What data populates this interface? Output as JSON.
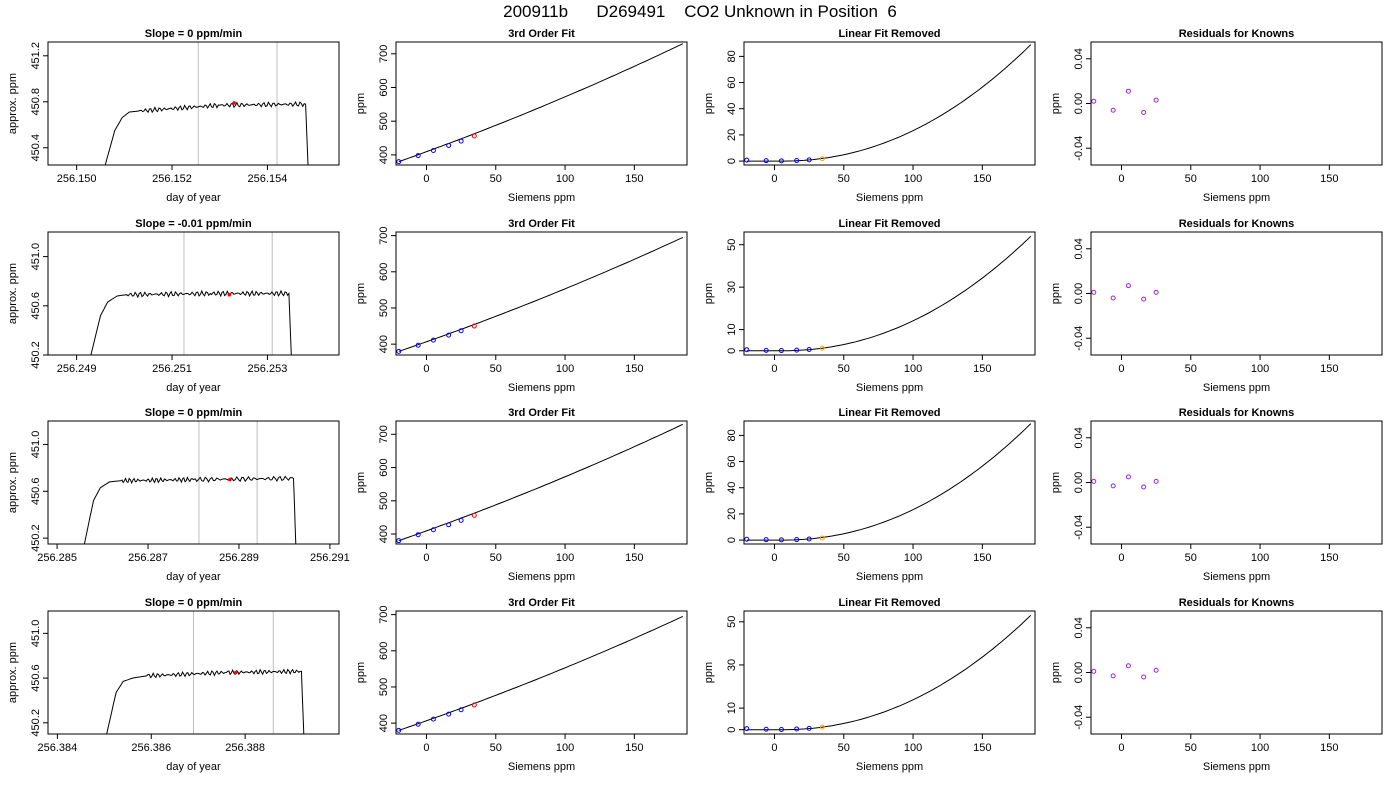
{
  "figure": {
    "title": "200911b      D269491    CO2 Unknown in Position  6"
  },
  "colors": {
    "axis": "#000000",
    "curve": "#000000",
    "marker_blue": "#0000ff",
    "marker_red": "#ff0000",
    "marker_orange": "#ffa500",
    "marker_purple": "#a020f0",
    "vline": "#bebebe",
    "background": "#ffffff"
  },
  "chart_data": [
    {
      "type": "line",
      "panel": "timeseries",
      "title": "Slope =  0  ppm/min",
      "xlabel": "day of year",
      "ylabel": "approx. ppm",
      "xlim": [
        256.1494,
        256.1555
      ],
      "ylim": [
        450.25,
        451.32
      ],
      "xticks": [
        "256.150",
        "256.152",
        "256.154"
      ],
      "yticks": [
        "450.4",
        "450.8",
        "451.2"
      ],
      "xtick_values": [
        256.15,
        256.152,
        256.154
      ],
      "ytick_values": [
        450.4,
        450.8,
        451.2
      ],
      "vlines": [
        256.15255,
        256.1542
      ],
      "marker": {
        "x": 256.1533,
        "y": 450.79
      },
      "series": [
        {
          "values": [
            [
              256.1506,
              450.25
            ],
            [
              256.1508,
              450.55
            ],
            [
              256.15095,
              450.66
            ],
            [
              256.1511,
              450.71
            ],
            [
              256.1513,
              450.72
            ],
            [
              256.153,
              450.77
            ],
            [
              256.1548,
              450.78
            ],
            [
              256.15485,
              450.25
            ]
          ]
        }
      ]
    },
    {
      "type": "line",
      "panel": "cubic_fit",
      "title": "3rd Order Fit",
      "xlabel": "Siemens ppm",
      "ylabel": "ppm",
      "xlim": [
        -22,
        188
      ],
      "ylim": [
        370,
        735
      ],
      "xticks": [
        "0",
        "50",
        "100",
        "150"
      ],
      "yticks": [
        "400",
        "500",
        "600",
        "700"
      ],
      "xtick_values": [
        0,
        50,
        100,
        150
      ],
      "ytick_values": [
        400,
        500,
        600,
        700
      ],
      "curve_x": [
        -20,
        185
      ],
      "curve_y": [
        380,
        730
      ],
      "points_blue": [
        [
          -20,
          380
        ],
        [
          -6,
          398
        ],
        [
          5,
          413
        ],
        [
          16,
          428
        ],
        [
          25,
          441
        ]
      ],
      "points_red": [
        [
          34.5,
          456
        ]
      ]
    },
    {
      "type": "line",
      "panel": "linear_removed",
      "title": "Linear Fit Removed",
      "xlabel": "Siemens ppm",
      "ylabel": "ppm",
      "xlim": [
        -22,
        188
      ],
      "ylim": [
        -3,
        91
      ],
      "xticks": [
        "0",
        "50",
        "100",
        "150"
      ],
      "yticks": [
        "0",
        "20",
        "40",
        "60",
        "80"
      ],
      "xtick_values": [
        0,
        50,
        100,
        150
      ],
      "ytick_values": [
        0,
        20,
        40,
        60,
        80
      ],
      "curve_x": [
        -20,
        185
      ],
      "curve_y": [
        0,
        89
      ],
      "points_blue": [
        [
          -20,
          0.7
        ],
        [
          -6,
          0.3
        ],
        [
          5,
          0.2
        ],
        [
          16,
          0.4
        ],
        [
          25,
          0.9
        ]
      ],
      "points_orange": [
        [
          34.5,
          1.8
        ]
      ]
    },
    {
      "type": "scatter",
      "panel": "residuals",
      "title": "Residuals for Knowns",
      "xlabel": "Siemens ppm",
      "ylabel": "ppm",
      "xlim": [
        -22,
        188
      ],
      "ylim": [
        -0.055,
        0.055
      ],
      "xticks": [
        "0",
        "50",
        "100",
        "150"
      ],
      "yticks": [
        "-0.04",
        "0.00",
        "0.04"
      ],
      "xtick_values": [
        0,
        50,
        100,
        150
      ],
      "ytick_values": [
        -0.04,
        0,
        0.04
      ],
      "points": [
        [
          -20,
          0.002
        ],
        [
          -6,
          -0.006
        ],
        [
          5,
          0.011
        ],
        [
          16,
          -0.008
        ],
        [
          25,
          0.003
        ]
      ]
    },
    {
      "type": "line",
      "panel": "timeseries",
      "title": "Slope =  -0.01  ppm/min",
      "xlabel": "day of year",
      "ylabel": "approx. ppm",
      "xlim": [
        256.2484,
        256.2545
      ],
      "ylim": [
        450.2,
        451.2
      ],
      "xticks": [
        "256.249",
        "256.251",
        "256.253"
      ],
      "yticks": [
        "450.2",
        "450.6",
        "451.0"
      ],
      "xtick_values": [
        256.249,
        256.251,
        256.253
      ],
      "ytick_values": [
        450.2,
        450.6,
        451.0
      ],
      "vlines": [
        256.25125,
        256.2531
      ],
      "marker": {
        "x": 256.2522,
        "y": 450.69
      },
      "series": [
        {
          "values": [
            [
              256.2493,
              450.2
            ],
            [
              256.2495,
              450.52
            ],
            [
              256.24965,
              450.63
            ],
            [
              256.24985,
              450.68
            ],
            [
              256.25005,
              450.69
            ],
            [
              256.2518,
              450.7
            ],
            [
              256.25345,
              450.7
            ],
            [
              256.2535,
              450.2
            ]
          ]
        }
      ]
    },
    {
      "type": "line",
      "panel": "cubic_fit",
      "title": "3rd Order Fit",
      "xlabel": "Siemens ppm",
      "ylabel": "ppm",
      "xlim": [
        -22,
        188
      ],
      "ylim": [
        370,
        710
      ],
      "xticks": [
        "0",
        "50",
        "100",
        "150"
      ],
      "yticks": [
        "400",
        "500",
        "600",
        "700"
      ],
      "xtick_values": [
        0,
        50,
        100,
        150
      ],
      "ytick_values": [
        400,
        500,
        600,
        700
      ],
      "curve_x": [
        -20,
        185
      ],
      "curve_y": [
        380,
        695
      ],
      "points_blue": [
        [
          -20,
          380
        ],
        [
          -6,
          397
        ],
        [
          5,
          411
        ],
        [
          16,
          425
        ],
        [
          25,
          437
        ]
      ],
      "points_red": [
        [
          34.5,
          450
        ]
      ]
    },
    {
      "type": "line",
      "panel": "linear_removed",
      "title": "Linear Fit Removed",
      "xlabel": "Siemens ppm",
      "ylabel": "ppm",
      "xlim": [
        -22,
        188
      ],
      "ylim": [
        -2,
        56
      ],
      "xticks": [
        "0",
        "50",
        "100",
        "150"
      ],
      "yticks": [
        "0",
        "10",
        "30",
        "50"
      ],
      "xtick_values": [
        0,
        50,
        100,
        150
      ],
      "ytick_values": [
        0,
        10,
        30,
        50
      ],
      "curve_x": [
        -20,
        185
      ],
      "curve_y": [
        0,
        54
      ],
      "points_blue": [
        [
          -20,
          0.5
        ],
        [
          -6,
          0.2
        ],
        [
          5,
          0.1
        ],
        [
          16,
          0.3
        ],
        [
          25,
          0.6
        ]
      ],
      "points_orange": [
        [
          34.5,
          1.2
        ]
      ]
    },
    {
      "type": "scatter",
      "panel": "residuals",
      "title": "Residuals for Knowns",
      "xlabel": "Siemens ppm",
      "ylabel": "ppm",
      "xlim": [
        -22,
        188
      ],
      "ylim": [
        -0.055,
        0.055
      ],
      "xticks": [
        "0",
        "50",
        "100",
        "150"
      ],
      "yticks": [
        "-0.04",
        "0.00",
        "0.04"
      ],
      "xtick_values": [
        0,
        50,
        100,
        150
      ],
      "ytick_values": [
        -0.04,
        0,
        0.04
      ],
      "points": [
        [
          -20,
          0.001
        ],
        [
          -6,
          -0.004
        ],
        [
          5,
          0.007
        ],
        [
          16,
          -0.005
        ],
        [
          25,
          0.001
        ]
      ]
    },
    {
      "type": "line",
      "panel": "timeseries",
      "title": "Slope =  0  ppm/min",
      "xlabel": "day of year",
      "ylabel": "approx. ppm",
      "xlim": [
        256.2848,
        256.2912
      ],
      "ylim": [
        450.15,
        451.2
      ],
      "xticks": [
        "256.285",
        "256.287",
        "256.289",
        "256.291"
      ],
      "yticks": [
        "450.2",
        "450.6",
        "451.0"
      ],
      "xtick_values": [
        256.285,
        256.287,
        256.289,
        256.291
      ],
      "ytick_values": [
        450.2,
        450.6,
        451.0
      ],
      "vlines": [
        256.28812,
        256.2894
      ],
      "marker": {
        "x": 256.2888,
        "y": 450.7
      },
      "series": [
        {
          "values": [
            [
              256.2856,
              450.15
            ],
            [
              256.2858,
              450.52
            ],
            [
              256.28595,
              450.63
            ],
            [
              256.28615,
              450.68
            ],
            [
              256.2864,
              450.69
            ],
            [
              256.288,
              450.7
            ],
            [
              256.2902,
              450.71
            ],
            [
              256.29025,
              450.15
            ]
          ]
        }
      ]
    },
    {
      "type": "line",
      "panel": "cubic_fit",
      "title": "3rd Order Fit",
      "xlabel": "Siemens ppm",
      "ylabel": "ppm",
      "xlim": [
        -22,
        188
      ],
      "ylim": [
        370,
        740
      ],
      "xticks": [
        "0",
        "50",
        "100",
        "150"
      ],
      "yticks": [
        "400",
        "500",
        "600",
        "700"
      ],
      "xtick_values": [
        0,
        50,
        100,
        150
      ],
      "ytick_values": [
        400,
        500,
        600,
        700
      ],
      "curve_x": [
        -20,
        185
      ],
      "curve_y": [
        380,
        730
      ],
      "points_blue": [
        [
          -20,
          380
        ],
        [
          -6,
          398
        ],
        [
          5,
          413
        ],
        [
          16,
          428
        ],
        [
          25,
          441
        ]
      ],
      "points_red": [
        [
          34.5,
          456
        ]
      ]
    },
    {
      "type": "line",
      "panel": "linear_removed",
      "title": "Linear Fit Removed",
      "xlabel": "Siemens ppm",
      "ylabel": "ppm",
      "xlim": [
        -22,
        188
      ],
      "ylim": [
        -3,
        91
      ],
      "xticks": [
        "0",
        "50",
        "100",
        "150"
      ],
      "yticks": [
        "0",
        "20",
        "40",
        "60",
        "80"
      ],
      "xtick_values": [
        0,
        50,
        100,
        150
      ],
      "ytick_values": [
        0,
        20,
        40,
        60,
        80
      ],
      "curve_x": [
        -20,
        185
      ],
      "curve_y": [
        0,
        89
      ],
      "points_blue": [
        [
          -20,
          0.6
        ],
        [
          -6,
          0.3
        ],
        [
          5,
          0.2
        ],
        [
          16,
          0.4
        ],
        [
          25,
          0.8
        ]
      ],
      "points_orange": [
        [
          34.5,
          1.6
        ]
      ]
    },
    {
      "type": "scatter",
      "panel": "residuals",
      "title": "Residuals for Knowns",
      "xlabel": "Siemens ppm",
      "ylabel": "ppm",
      "xlim": [
        -22,
        188
      ],
      "ylim": [
        -0.055,
        0.055
      ],
      "xticks": [
        "0",
        "50",
        "100",
        "150"
      ],
      "yticks": [
        "-0.04",
        "0.00",
        "0.04"
      ],
      "xtick_values": [
        0,
        50,
        100,
        150
      ],
      "ytick_values": [
        -0.04,
        0,
        0.04
      ],
      "points": [
        [
          -20,
          0.001
        ],
        [
          -6,
          -0.003
        ],
        [
          5,
          0.005
        ],
        [
          16,
          -0.004
        ],
        [
          25,
          0.001
        ]
      ]
    },
    {
      "type": "line",
      "panel": "timeseries",
      "title": "Slope =  0  ppm/min",
      "xlabel": "day of year",
      "ylabel": "approx. ppm",
      "xlim": [
        256.3838,
        256.39
      ],
      "ylim": [
        450.1,
        451.2
      ],
      "xticks": [
        "256.384",
        "256.386",
        "256.388"
      ],
      "yticks": [
        "450.2",
        "450.6",
        "451.0"
      ],
      "xtick_values": [
        256.384,
        256.386,
        256.388
      ],
      "ytick_values": [
        450.2,
        450.6,
        451.0
      ],
      "vlines": [
        256.3869,
        256.3886
      ],
      "marker": {
        "x": 256.3878,
        "y": 450.65
      },
      "series": [
        {
          "values": [
            [
              256.38505,
              450.1
            ],
            [
              256.38525,
              450.47
            ],
            [
              256.3854,
              450.57
            ],
            [
              256.3856,
              450.6
            ],
            [
              256.3859,
              450.62
            ],
            [
              256.3876,
              450.65
            ],
            [
              256.3892,
              450.66
            ],
            [
              256.38925,
              450.1
            ]
          ]
        }
      ]
    },
    {
      "type": "line",
      "panel": "cubic_fit",
      "title": "3rd Order Fit",
      "xlabel": "Siemens ppm",
      "ylabel": "ppm",
      "xlim": [
        -22,
        188
      ],
      "ylim": [
        370,
        710
      ],
      "xticks": [
        "0",
        "50",
        "100",
        "150"
      ],
      "yticks": [
        "400",
        "500",
        "600",
        "700"
      ],
      "xtick_values": [
        0,
        50,
        100,
        150
      ],
      "ytick_values": [
        400,
        500,
        600,
        700
      ],
      "curve_x": [
        -20,
        185
      ],
      "curve_y": [
        380,
        695
      ],
      "points_blue": [
        [
          -20,
          380
        ],
        [
          -6,
          397
        ],
        [
          5,
          411
        ],
        [
          16,
          425
        ],
        [
          25,
          437
        ]
      ],
      "points_red": [
        [
          34.5,
          450
        ]
      ]
    },
    {
      "type": "line",
      "panel": "linear_removed",
      "title": "Linear Fit Removed",
      "xlabel": "Siemens ppm",
      "ylabel": "ppm",
      "xlim": [
        -22,
        188
      ],
      "ylim": [
        -2,
        55
      ],
      "xticks": [
        "0",
        "50",
        "100",
        "150"
      ],
      "yticks": [
        "0",
        "10",
        "30",
        "50"
      ],
      "xtick_values": [
        0,
        50,
        100,
        150
      ],
      "ytick_values": [
        0,
        10,
        30,
        50
      ],
      "curve_x": [
        -20,
        185
      ],
      "curve_y": [
        0,
        53
      ],
      "points_blue": [
        [
          -20,
          0.5
        ],
        [
          -6,
          0.2
        ],
        [
          5,
          0.1
        ],
        [
          16,
          0.3
        ],
        [
          25,
          0.6
        ]
      ],
      "points_orange": [
        [
          34.5,
          1.2
        ]
      ]
    },
    {
      "type": "scatter",
      "panel": "residuals",
      "title": "Residuals for Knowns",
      "xlabel": "Siemens ppm",
      "ylabel": "ppm",
      "xlim": [
        -22,
        188
      ],
      "ylim": [
        -0.055,
        0.055
      ],
      "xticks": [
        "0",
        "50",
        "100",
        "150"
      ],
      "yticks": [
        "-0.04",
        "0.00",
        "0.04"
      ],
      "xtick_values": [
        0,
        50,
        100,
        150
      ],
      "ytick_values": [
        -0.04,
        0,
        0.04
      ],
      "points": [
        [
          -20,
          0.001
        ],
        [
          -6,
          -0.003
        ],
        [
          5,
          0.006
        ],
        [
          16,
          -0.004
        ],
        [
          25,
          0.002
        ]
      ]
    }
  ]
}
